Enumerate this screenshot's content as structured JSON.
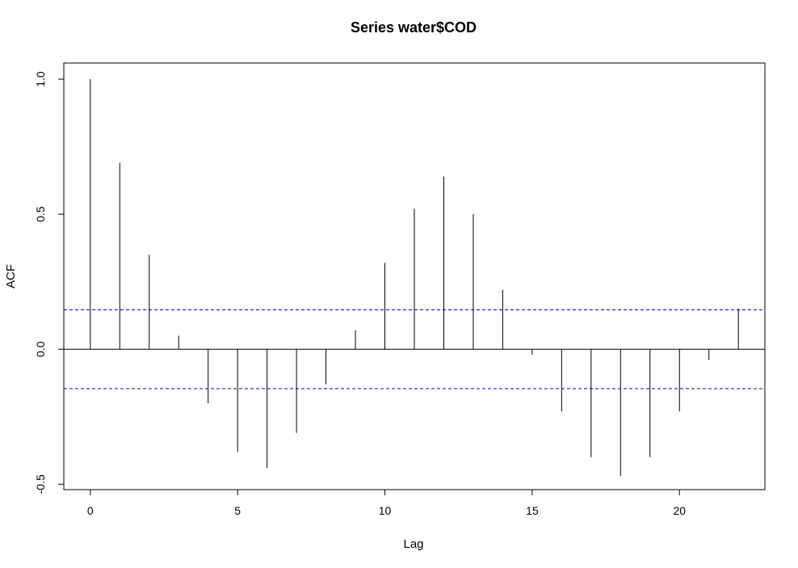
{
  "chart_data": {
    "type": "bar",
    "title": "Series  water$COD",
    "xlabel": "Lag",
    "ylabel": "ACF",
    "xlim": [
      -0.9,
      22.9
    ],
    "ylim": [
      -0.52,
      1.06
    ],
    "x_ticks": [
      0,
      5,
      10,
      15,
      20
    ],
    "y_ticks": [
      -0.5,
      0.0,
      0.5,
      1.0
    ],
    "x_tick_labels": [
      "0",
      "5",
      "10",
      "15",
      "20"
    ],
    "y_tick_labels": [
      "-0.5",
      "0.0",
      "0.5",
      "1.0"
    ],
    "lags": [
      0,
      1,
      2,
      3,
      4,
      5,
      6,
      7,
      8,
      9,
      10,
      11,
      12,
      13,
      14,
      15,
      16,
      17,
      18,
      19,
      20,
      21,
      22
    ],
    "values": [
      1.0,
      0.69,
      0.35,
      0.05,
      -0.2,
      -0.38,
      -0.44,
      -0.31,
      -0.13,
      0.07,
      0.32,
      0.52,
      0.64,
      0.5,
      0.22,
      -0.02,
      -0.23,
      -0.4,
      -0.47,
      -0.4,
      -0.23,
      -0.04,
      0.15
    ],
    "confidence_bound": 0.146,
    "bar_color": "#000000",
    "ci_color": "#0000CD",
    "grid": false
  }
}
